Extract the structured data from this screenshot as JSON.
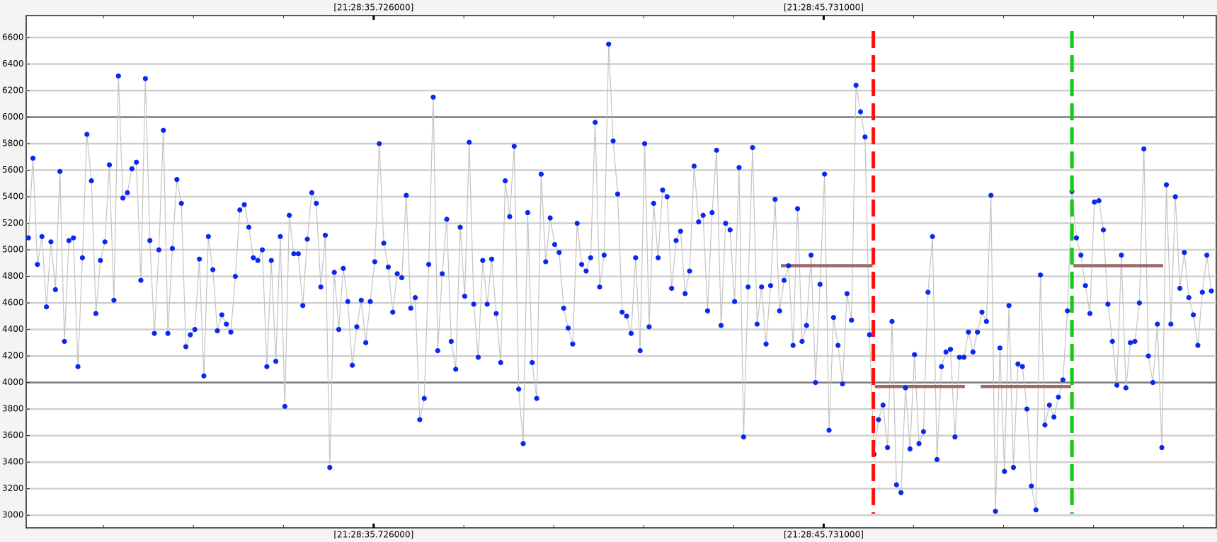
{
  "chart_data": {
    "type": "scatter_line",
    "xlim": [
      28.0,
      54.46
    ],
    "ylim": [
      2905,
      6765
    ],
    "xticks": [
      {
        "value": 35.726,
        "label": "[21:28:35.726000]"
      },
      {
        "value": 45.731,
        "label": "[21:28:45.731000]"
      }
    ],
    "xminorticks": [
      29.72,
      31.72,
      33.72,
      37.73,
      39.73,
      41.73,
      43.73,
      47.73,
      49.73,
      51.73,
      53.73
    ],
    "yticks": [
      3000,
      3200,
      3400,
      3600,
      3800,
      4000,
      4200,
      4400,
      4600,
      4800,
      5000,
      5200,
      5400,
      5600,
      5800,
      6000,
      6200,
      6400,
      6600
    ],
    "grid": true,
    "emphasized_gridlines": [
      4000,
      6000
    ],
    "line_color": "#c4c4c4",
    "color": "#0a28f0",
    "x": [
      28.05,
      28.15,
      28.25,
      28.35,
      28.45,
      28.55,
      28.65,
      28.75,
      28.85,
      28.95,
      29.05,
      29.15,
      29.25,
      29.35,
      29.45,
      29.55,
      29.65,
      29.75,
      29.85,
      29.95,
      30.05,
      30.15,
      30.25,
      30.35,
      30.45,
      30.55,
      30.65,
      30.75,
      30.85,
      30.95,
      31.05,
      31.15,
      31.25,
      31.35,
      31.45,
      31.55,
      31.65,
      31.75,
      31.85,
      31.95,
      32.05,
      32.15,
      32.25,
      32.35,
      32.45,
      32.55,
      32.65,
      32.75,
      32.85,
      32.95,
      33.05,
      33.15,
      33.25,
      33.35,
      33.45,
      33.55,
      33.65,
      33.75,
      33.85,
      33.95,
      34.05,
      34.15,
      34.25,
      34.35,
      34.45,
      34.55,
      34.65,
      34.75,
      34.85,
      34.95,
      35.05,
      35.15,
      35.25,
      35.35,
      35.45,
      35.55,
      35.65,
      35.75,
      35.85,
      35.95,
      36.05,
      36.15,
      36.25,
      36.35,
      36.45,
      36.55,
      36.65,
      36.75,
      36.85,
      36.95,
      37.05,
      37.15,
      37.25,
      37.35,
      37.45,
      37.55,
      37.65,
      37.75,
      37.85,
      37.95,
      38.05,
      38.15,
      38.25,
      38.35,
      38.45,
      38.55,
      38.65,
      38.75,
      38.85,
      38.95,
      39.05,
      39.15,
      39.25,
      39.35,
      39.45,
      39.55,
      39.65,
      39.75,
      39.85,
      39.95,
      40.05,
      40.15,
      40.25,
      40.35,
      40.45,
      40.55,
      40.65,
      40.75,
      40.85,
      40.95,
      41.05,
      41.15,
      41.25,
      41.35,
      41.45,
      41.55,
      41.65,
      41.75,
      41.85,
      41.95,
      42.05,
      42.15,
      42.25,
      42.35,
      42.45,
      42.55,
      42.65,
      42.75,
      42.85,
      42.95,
      43.05,
      43.15,
      43.25,
      43.35,
      43.45,
      43.55,
      43.65,
      43.75,
      43.85,
      43.95,
      44.05,
      44.15,
      44.25,
      44.35,
      44.45,
      44.55,
      44.65,
      44.75,
      44.85,
      44.95,
      45.05,
      45.15,
      45.25,
      45.35,
      45.45,
      45.55,
      45.65,
      45.75,
      45.85,
      45.95,
      46.05,
      46.15,
      46.25,
      46.35,
      46.45,
      46.55,
      46.65,
      46.75,
      46.85,
      46.95,
      47.05,
      47.15,
      47.25,
      47.35,
      47.45,
      47.55,
      47.65,
      47.75,
      47.85,
      47.95,
      48.05,
      48.15,
      48.25,
      48.35,
      48.45,
      48.55,
      48.65,
      48.75,
      48.85,
      48.95,
      49.05,
      49.15,
      49.25,
      49.35,
      49.45,
      49.55,
      49.65,
      49.75,
      49.85,
      49.95,
      50.05,
      50.15,
      50.25,
      50.35,
      50.45,
      50.55,
      50.65,
      50.75,
      50.85,
      50.95,
      51.05,
      51.15,
      51.25,
      51.35,
      51.45,
      51.55,
      51.65,
      51.75,
      51.85,
      51.95,
      52.05,
      52.15,
      52.25,
      52.35,
      52.45,
      52.55,
      52.65,
      52.75,
      52.85,
      52.95,
      53.05,
      53.15,
      53.25,
      53.35,
      53.45,
      53.55,
      53.65,
      53.75,
      53.85,
      53.95,
      54.05,
      54.15,
      54.25,
      54.35
    ],
    "values": [
      5090,
      5690,
      4890,
      5100,
      4570,
      5060,
      4700,
      5590,
      4310,
      5070,
      5090,
      4120,
      4940,
      5870,
      5520,
      4520,
      4920,
      5060,
      5640,
      4620,
      6310,
      5390,
      5430,
      5610,
      5660,
      4770,
      6290,
      5070,
      4370,
      5000,
      5900,
      4370,
      5010,
      5530,
      5350,
      4270,
      4360,
      4400,
      4930,
      4050,
      5100,
      4850,
      4390,
      4510,
      4440,
      4380,
      4800,
      5300,
      5340,
      5170,
      4940,
      4920,
      5000,
      4120,
      4920,
      4160,
      5100,
      3820,
      5260,
      4970,
      4970,
      4580,
      5080,
      5430,
      5350,
      4720,
      5110,
      3360,
      4830,
      4400,
      4860,
      4610,
      4130,
      4420,
      4620,
      4300,
      4610,
      4910,
      5800,
      5050,
      4870,
      4530,
      4820,
      4790,
      5410,
      4560,
      4640,
      3720,
      3880,
      4890,
      6150,
      4240,
      4820,
      5230,
      4310,
      4100,
      5170,
      4650,
      5810,
      4590,
      4190,
      4920,
      4590,
      4930,
      4520,
      4150,
      5520,
      5250,
      5780,
      3950,
      3540,
      5280,
      4150,
      3880,
      5570,
      4910,
      5240,
      5040,
      4980,
      4560,
      4410,
      4290,
      5200,
      4890,
      4840,
      4940,
      5960,
      4720,
      4960,
      6550,
      5820,
      5420,
      4530,
      4500,
      4370,
      4940,
      4240,
      5800,
      4420,
      5350,
      4940,
      5450,
      5400,
      4710,
      5070,
      5140,
      4670,
      4840,
      5630,
      5210,
      5260,
      4540,
      5280,
      5750,
      4430,
      5200,
      5150,
      4610,
      5620,
      3590,
      4720,
      5770,
      4440,
      4720,
      4290,
      4730,
      5380,
      4540,
      4770,
      4880,
      4280,
      5310,
      4310,
      4430,
      4960,
      4000,
      4740,
      5570,
      3640,
      4490,
      4280,
      3990,
      4670,
      4470,
      6240,
      6040,
      5850,
      4360,
      3460,
      3720,
      3830,
      3510,
      4460,
      3230,
      3170,
      3960,
      3500,
      4210,
      3540,
      3630,
      4680,
      5100,
      3420,
      4120,
      4230,
      4250,
      3590,
      4190,
      4190,
      4380,
      4230,
      4380,
      4530,
      4460,
      5410,
      3030,
      4260,
      3330,
      4580,
      3360,
      4140,
      4120,
      3800,
      3220,
      3040,
      4810,
      3680,
      3830,
      3740,
      3890,
      4020,
      4540,
      5440,
      5090,
      4960,
      4730,
      4520,
      5360,
      5370,
      5150,
      4590,
      4310,
      3980,
      4960,
      3960,
      4300,
      4310,
      4600,
      5760,
      4200,
      4000,
      4440,
      3510,
      5490,
      4440,
      5400,
      4710,
      4980,
      4640,
      4510,
      4280,
      4680,
      4960,
      4690
    ],
    "levels": [
      {
        "x": [
          44.78,
          46.82
        ],
        "y": 4880
      },
      {
        "x": [
          46.87,
          48.87
        ],
        "y": 3970
      },
      {
        "x": [
          49.22,
          51.23
        ],
        "y": 3970
      },
      {
        "x": [
          51.28,
          53.28
        ],
        "y": 4880
      }
    ],
    "level_color": "#9e6868",
    "markers": [
      {
        "x": 46.835,
        "color": "#ff1010"
      },
      {
        "x": 51.251,
        "color": "#10cc10"
      }
    ]
  }
}
